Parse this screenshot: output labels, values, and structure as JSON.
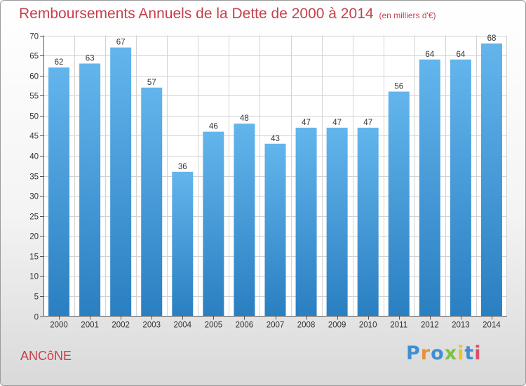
{
  "title": "Remboursements Annuels de la Dette de 2000 à 2014",
  "unit": "(en milliers d'€)",
  "commune": "ANCôNE",
  "brand": {
    "letters": [
      "P",
      "r",
      "o",
      "x",
      "i",
      "t",
      "i"
    ],
    "colors": [
      "#3d8fd1",
      "#e8913a",
      "#3d8fd1",
      "#7cc243",
      "#f0c21b",
      "#3d8fd1",
      "#d94f6a"
    ]
  },
  "colors": {
    "title": "#c6414d",
    "bar_top": "#63b5ec",
    "bar_bottom": "#2a7fc1"
  },
  "chart_data": {
    "type": "bar",
    "title": "Remboursements Annuels de la Dette de 2000 à 2014",
    "subtitle": "(en milliers d'€)",
    "categories": [
      "2000",
      "2001",
      "2002",
      "2003",
      "2004",
      "2005",
      "2006",
      "2007",
      "2008",
      "2009",
      "2010",
      "2011",
      "2012",
      "2013",
      "2014"
    ],
    "values": [
      62,
      63,
      67,
      57,
      36,
      46,
      48,
      43,
      47,
      47,
      47,
      56,
      64,
      64,
      68
    ],
    "ylim": [
      0,
      70
    ],
    "yticks": [
      0,
      5,
      10,
      15,
      20,
      25,
      30,
      35,
      40,
      45,
      50,
      55,
      60,
      65,
      70
    ],
    "grid": true,
    "legend": "none"
  }
}
